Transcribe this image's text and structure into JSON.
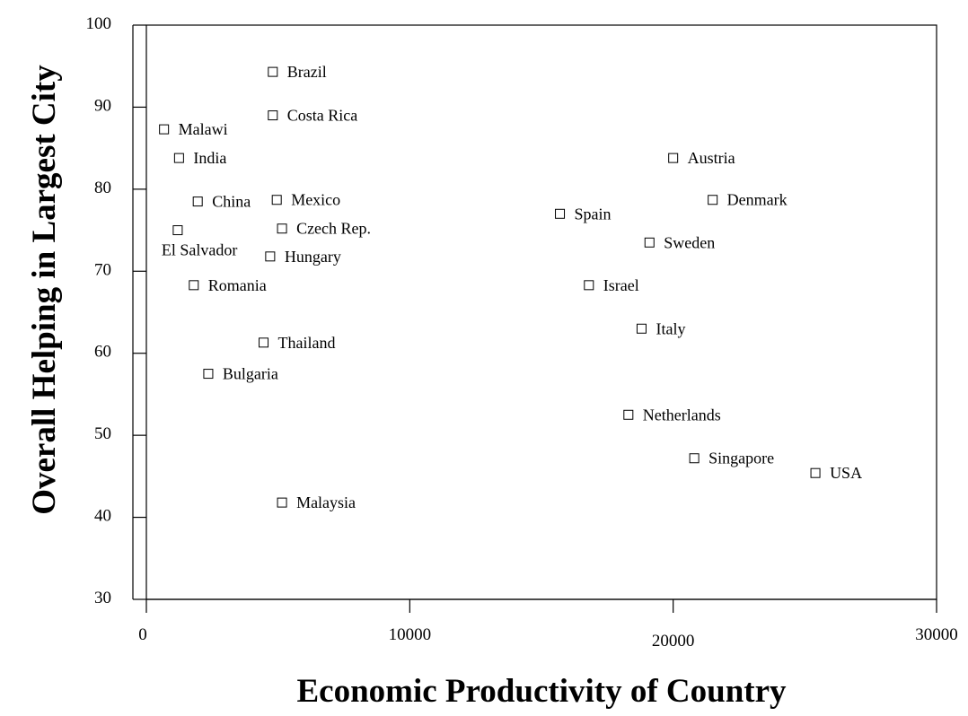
{
  "chart_data": {
    "type": "scatter",
    "title": "",
    "xlabel": "Economic Productivity of Country",
    "ylabel": "Overall Helping in Largest City",
    "xlim": [
      0,
      30000
    ],
    "ylim": [
      30,
      100
    ],
    "x_ticks": [
      "0",
      "10000",
      "20000",
      "30000"
    ],
    "y_ticks": [
      "30",
      "40",
      "50",
      "60",
      "70",
      "80",
      "90",
      "100"
    ],
    "grid": false,
    "legend": "none",
    "marker": "open-square",
    "points": [
      {
        "label": "Brazil",
        "x": 4800,
        "y": 94.3
      },
      {
        "label": "Costa Rica",
        "x": 4800,
        "y": 89.0
      },
      {
        "label": "Malawi",
        "x": 670,
        "y": 87.3
      },
      {
        "label": "India",
        "x": 1240,
        "y": 83.8
      },
      {
        "label": "Austria",
        "x": 20000,
        "y": 83.8
      },
      {
        "label": "China",
        "x": 1950,
        "y": 78.5
      },
      {
        "label": "Mexico",
        "x": 4950,
        "y": 78.7
      },
      {
        "label": "Denmark",
        "x": 21500,
        "y": 78.7
      },
      {
        "label": "Spain",
        "x": 15700,
        "y": 77.0
      },
      {
        "label": "El Salvador",
        "x": 1190,
        "y": 75.0
      },
      {
        "label": "Czech Rep.",
        "x": 5150,
        "y": 75.2
      },
      {
        "label": "Sweden",
        "x": 19100,
        "y": 73.5
      },
      {
        "label": "Hungary",
        "x": 4700,
        "y": 71.8
      },
      {
        "label": "Romania",
        "x": 1800,
        "y": 68.3
      },
      {
        "label": "Israel",
        "x": 16800,
        "y": 68.3
      },
      {
        "label": "Italy",
        "x": 18800,
        "y": 63.0
      },
      {
        "label": "Thailand",
        "x": 4450,
        "y": 61.3
      },
      {
        "label": "Bulgaria",
        "x": 2350,
        "y": 57.5
      },
      {
        "label": "Netherlands",
        "x": 18300,
        "y": 52.5
      },
      {
        "label": "Singapore",
        "x": 20800,
        "y": 47.2
      },
      {
        "label": "USA",
        "x": 25400,
        "y": 45.4
      },
      {
        "label": "Malaysia",
        "x": 5150,
        "y": 41.8
      }
    ]
  }
}
